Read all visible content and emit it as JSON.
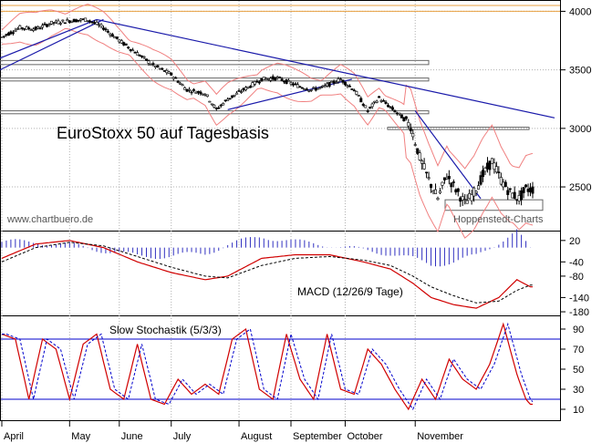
{
  "colors": {
    "candle": "#000000",
    "trend": "#1a1aaa",
    "band": "#f08080",
    "level": "#e8a040",
    "macd": "#d00000",
    "histogram": "#3030c0",
    "stoch_level": "#0000cc",
    "grid": "#b0b0b0"
  },
  "chart_data": [
    {
      "type": "candlestick",
      "title": "EuroStoxx 50 auf Tagesbasis",
      "watermark_left": "www.chartbuero.de",
      "watermark_right": "Hoppenstedt-Charts",
      "y_ticks": [
        4000,
        3500,
        3000,
        2500
      ],
      "ylim": [
        2150,
        4050
      ],
      "months": [
        "April",
        "May",
        "June",
        "July",
        "August",
        "September",
        "October",
        "November"
      ],
      "price_path": [
        [
          0,
          3780
        ],
        [
          8,
          3860
        ],
        [
          15,
          3850
        ],
        [
          22,
          3900
        ],
        [
          30,
          3920
        ],
        [
          38,
          3930
        ],
        [
          45,
          3860
        ],
        [
          52,
          3750
        ],
        [
          60,
          3640
        ],
        [
          67,
          3540
        ],
        [
          75,
          3460
        ],
        [
          82,
          3330
        ],
        [
          90,
          3300
        ],
        [
          95,
          3160
        ],
        [
          100,
          3250
        ],
        [
          108,
          3340
        ],
        [
          115,
          3420
        ],
        [
          122,
          3430
        ],
        [
          130,
          3370
        ],
        [
          137,
          3330
        ],
        [
          142,
          3350
        ],
        [
          150,
          3420
        ],
        [
          156,
          3330
        ],
        [
          162,
          3150
        ],
        [
          167,
          3260
        ],
        [
          172,
          3180
        ],
        [
          177,
          3100
        ],
        [
          181,
          3020
        ],
        [
          185,
          2750
        ],
        [
          189,
          2560
        ],
        [
          193,
          2400
        ],
        [
          197,
          2600
        ],
        [
          201,
          2480
        ],
        [
          205,
          2360
        ],
        [
          209,
          2450
        ],
        [
          213,
          2600
        ],
        [
          217,
          2720
        ],
        [
          221,
          2560
        ],
        [
          225,
          2450
        ],
        [
          229,
          2400
        ],
        [
          232,
          2480
        ]
      ],
      "support_level": 4000,
      "support_level_2": 4050
    },
    {
      "type": "line",
      "title": "MACD (12/26/9 Tage)",
      "y_ticks": [
        20,
        -40,
        -80,
        -140,
        -180
      ],
      "ylim": [
        -185,
        40
      ],
      "macd_path": [
        [
          0,
          -30
        ],
        [
          15,
          10
        ],
        [
          30,
          20
        ],
        [
          45,
          0
        ],
        [
          60,
          -40
        ],
        [
          75,
          -70
        ],
        [
          90,
          -90
        ],
        [
          100,
          -80
        ],
        [
          115,
          -30
        ],
        [
          130,
          -20
        ],
        [
          145,
          -20
        ],
        [
          160,
          -40
        ],
        [
          172,
          -60
        ],
        [
          182,
          -100
        ],
        [
          190,
          -140
        ],
        [
          200,
          -160
        ],
        [
          210,
          -170
        ],
        [
          220,
          -140
        ],
        [
          228,
          -90
        ],
        [
          234,
          -110
        ]
      ],
      "signal_path": [
        [
          0,
          -40
        ],
        [
          15,
          0
        ],
        [
          30,
          15
        ],
        [
          45,
          5
        ],
        [
          60,
          -25
        ],
        [
          75,
          -55
        ],
        [
          90,
          -80
        ],
        [
          100,
          -85
        ],
        [
          115,
          -50
        ],
        [
          130,
          -30
        ],
        [
          145,
          -25
        ],
        [
          160,
          -35
        ],
        [
          172,
          -50
        ],
        [
          182,
          -80
        ],
        [
          190,
          -110
        ],
        [
          200,
          -135
        ],
        [
          210,
          -155
        ],
        [
          220,
          -150
        ],
        [
          228,
          -120
        ],
        [
          234,
          -105
        ]
      ]
    },
    {
      "type": "line",
      "title": "Slow Stochastik (5/3/3)",
      "y_ticks": [
        90,
        70,
        50,
        30,
        10
      ],
      "ylim": [
        0,
        100
      ],
      "levels": [
        80,
        20
      ],
      "k_path": [
        [
          0,
          85
        ],
        [
          6,
          80
        ],
        [
          12,
          20
        ],
        [
          18,
          80
        ],
        [
          24,
          70
        ],
        [
          30,
          20
        ],
        [
          36,
          75
        ],
        [
          42,
          85
        ],
        [
          48,
          30
        ],
        [
          54,
          20
        ],
        [
          60,
          75
        ],
        [
          66,
          20
        ],
        [
          72,
          15
        ],
        [
          78,
          40
        ],
        [
          84,
          25
        ],
        [
          90,
          35
        ],
        [
          96,
          25
        ],
        [
          102,
          80
        ],
        [
          108,
          90
        ],
        [
          114,
          30
        ],
        [
          120,
          20
        ],
        [
          126,
          85
        ],
        [
          132,
          40
        ],
        [
          138,
          20
        ],
        [
          144,
          85
        ],
        [
          150,
          30
        ],
        [
          156,
          25
        ],
        [
          162,
          70
        ],
        [
          168,
          55
        ],
        [
          174,
          30
        ],
        [
          180,
          10
        ],
        [
          186,
          40
        ],
        [
          192,
          20
        ],
        [
          198,
          60
        ],
        [
          204,
          40
        ],
        [
          210,
          30
        ],
        [
          216,
          55
        ],
        [
          222,
          95
        ],
        [
          228,
          45
        ],
        [
          232,
          20
        ],
        [
          234,
          15
        ]
      ]
    }
  ]
}
